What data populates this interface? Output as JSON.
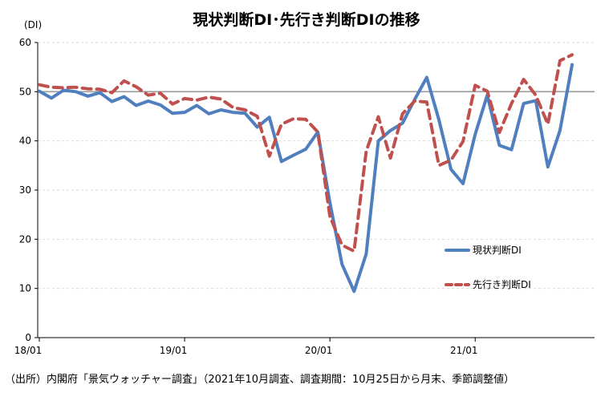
{
  "chart_data": {
    "type": "line",
    "title": "現状判断DI･先行き判断DIの推移",
    "unit_label": "(DI)",
    "source_note": "（出所）内閣府「景気ウォッチャー調査」（2021年10月調査、調査期間：10月25日から月末、季節調整値）",
    "x_tick_labels": [
      "18/01",
      "19/01",
      "20/01",
      "21/01"
    ],
    "x_tick_index": [
      0,
      12,
      24,
      36
    ],
    "ylim": [
      0,
      60
    ],
    "y_ticks": [
      0,
      10,
      20,
      30,
      40,
      50,
      60
    ],
    "reference_line": 50,
    "grid": true,
    "legend_position": "right-lower",
    "series": [
      {
        "name": "現状判断DI",
        "color": "#4F7FBE",
        "style": "solid",
        "values": [
          50.1,
          48.7,
          50.3,
          50.0,
          49.1,
          49.8,
          48.0,
          49.0,
          47.2,
          48.1,
          47.3,
          45.6,
          45.8,
          47.2,
          45.5,
          46.3,
          45.8,
          45.6,
          42.8,
          44.8,
          35.8,
          37.1,
          38.3,
          41.8,
          27.4,
          14.9,
          9.4,
          17.0,
          40.0,
          42.1,
          43.6,
          48.4,
          52.9,
          44.3,
          34.2,
          31.3,
          41.3,
          49.3,
          39.1,
          38.2,
          47.6,
          48.2,
          34.7,
          42.1,
          55.5
        ]
      },
      {
        "name": "先行き判断DI",
        "color": "#C0504D",
        "style": "dashed",
        "values": [
          51.4,
          50.9,
          50.8,
          50.9,
          50.6,
          50.5,
          49.8,
          52.2,
          51.0,
          49.3,
          49.7,
          47.5,
          48.6,
          48.3,
          48.9,
          48.5,
          46.8,
          46.3,
          45.0,
          36.9,
          43.4,
          44.5,
          44.4,
          41.8,
          24.6,
          18.8,
          17.6,
          37.9,
          44.9,
          36.5,
          45.5,
          48.1,
          47.9,
          35.0,
          36.1,
          39.9,
          51.3,
          50.1,
          41.7,
          47.6,
          52.5,
          49.3,
          43.4,
          56.3,
          57.5
        ]
      }
    ]
  }
}
